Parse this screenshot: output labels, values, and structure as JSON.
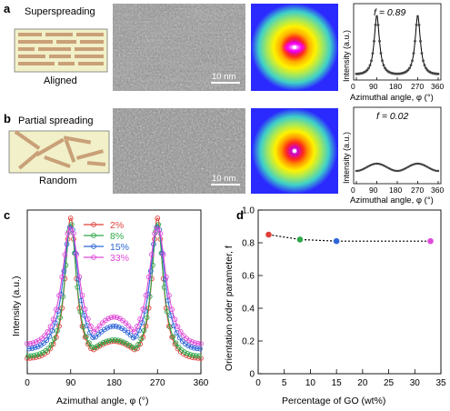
{
  "panels": {
    "a": {
      "letter": "a",
      "title": "Superspreading",
      "caption": "Aligned",
      "scalebar": "10 nm",
      "f_label": "f = 0.89"
    },
    "b": {
      "letter": "b",
      "title": "Partial spreading",
      "caption": "Random",
      "scalebar": "10 nm",
      "f_label": "f = 0.02"
    },
    "c": {
      "letter": "c"
    },
    "d": {
      "letter": "d"
    }
  },
  "small_plots": {
    "ylabel": "Intensity (a.u.)",
    "xlabel": "Azimuthal angle, φ (°)",
    "xticks": [
      "0",
      "90",
      "180",
      "270",
      "360"
    ]
  },
  "colors": {
    "series_2": "#e0403a",
    "series_8": "#2ea84a",
    "series_15": "#2f67d8",
    "series_33": "#e04ad8",
    "sheet_fill": "#f1f0c8",
    "sheet_bar": "#c9a078"
  },
  "chart_data": [
    {
      "id": "panel-c",
      "type": "line",
      "xlabel": "Azimuthal angle, φ (°)",
      "ylabel": "Intensity (a.u.)",
      "xlim": [
        0,
        360
      ],
      "xticks": [
        "0",
        "90",
        "180",
        "270",
        "360"
      ],
      "legend_position": "top-center",
      "series": [
        {
          "name": "2%",
          "peak": 1.0,
          "baseline": 0.04,
          "minimum": 0.18
        },
        {
          "name": "8%",
          "peak": 0.96,
          "baseline": 0.05,
          "minimum": 0.19
        },
        {
          "name": "15%",
          "peak": 0.94,
          "baseline": 0.07,
          "minimum": 0.28
        },
        {
          "name": "33%",
          "peak": 0.93,
          "baseline": 0.08,
          "minimum": 0.34
        }
      ]
    },
    {
      "id": "panel-d",
      "type": "scatter",
      "xlabel": "Percentage of GO (wt%)",
      "ylabel": "Orientation order parameter, f",
      "xlim": [
        0,
        35
      ],
      "ylim": [
        0,
        1.0
      ],
      "xticks": [
        "0",
        "5",
        "10",
        "15",
        "20",
        "25",
        "30",
        "35"
      ],
      "yticks": [
        "0",
        "0.2",
        "0.4",
        "0.6",
        "0.8",
        "1.0"
      ],
      "grid": false,
      "points": [
        {
          "x": 2,
          "y": 0.85
        },
        {
          "x": 8,
          "y": 0.82
        },
        {
          "x": 15,
          "y": 0.81
        },
        {
          "x": 33,
          "y": 0.81
        }
      ]
    },
    {
      "id": "panel-a-profile",
      "type": "line",
      "xlabel": "Azimuthal angle, φ (°)",
      "ylabel": "Intensity (a.u.)",
      "xlim": [
        0,
        360
      ],
      "peaks_at": [
        90,
        270
      ],
      "f": 0.89
    },
    {
      "id": "panel-b-profile",
      "type": "line",
      "xlabel": "Azimuthal angle, φ (°)",
      "ylabel": "Intensity (a.u.)",
      "xlim": [
        0,
        360
      ],
      "f": 0.02
    }
  ]
}
